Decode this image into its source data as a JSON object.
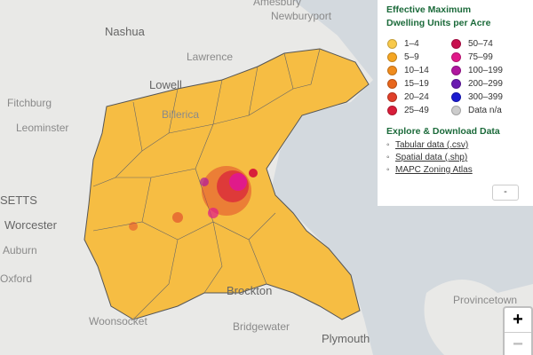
{
  "map": {
    "places": [
      "Amesbury",
      "Newburyport",
      "Nashua",
      "Lawrence",
      "Lowell",
      "Billerica",
      "Fitchburg",
      "Leominster",
      "SETTS",
      "Worcester",
      "Auburn",
      "Oxford",
      "Brockton",
      "Woonsocket",
      "Bridgewater",
      "Plymouth",
      "Provincetown"
    ]
  },
  "legend": {
    "title": "Effective Maximum Dwelling Units per Acre",
    "items": [
      {
        "label": "1–4",
        "color": "#f8c94a"
      },
      {
        "label": "5–9",
        "color": "#f5a623"
      },
      {
        "label": "10–14",
        "color": "#f08c1e"
      },
      {
        "label": "15–19",
        "color": "#e8661c"
      },
      {
        "label": "20–24",
        "color": "#e0402a"
      },
      {
        "label": "25–49",
        "color": "#d81e3a"
      },
      {
        "label": "50–74",
        "color": "#c8104f"
      },
      {
        "label": "75–99",
        "color": "#e01a8a"
      },
      {
        "label": "100–199",
        "color": "#b0179f"
      },
      {
        "label": "200–299",
        "color": "#6a1ab0"
      },
      {
        "label": "300–399",
        "color": "#1a1ad0"
      },
      {
        "label": "Data n/a",
        "color": "#cccccc"
      }
    ]
  },
  "links": {
    "heading": "Explore & Download Data",
    "items": [
      "Tabular data (.csv)",
      "Spatial data (.shp)",
      "MAPC Zoning Atlas"
    ]
  },
  "controls": {
    "collapse": "-",
    "zoom_in": "+",
    "zoom_out": "−"
  }
}
